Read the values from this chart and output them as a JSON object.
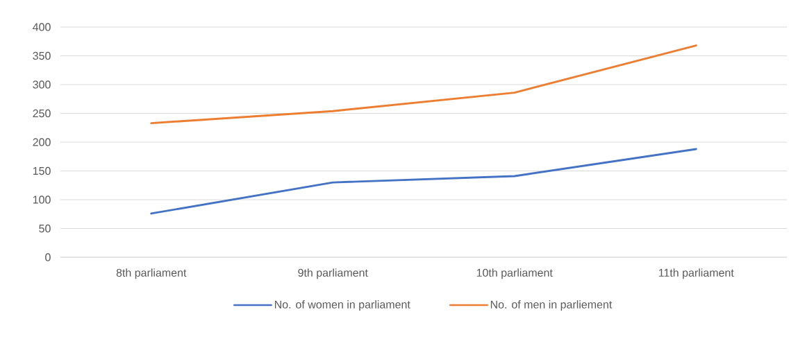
{
  "chart_data": {
    "type": "line",
    "categories": [
      "8th parliament",
      "9th parliament",
      "10th parliament",
      "11th parliament"
    ],
    "series": [
      {
        "name": "No. of women in parliament",
        "color": "#4472c4",
        "values": [
          76,
          130,
          141,
          188
        ]
      },
      {
        "name": "No. of men in parliement",
        "color": "#ed7d31",
        "values": [
          233,
          254,
          286,
          368
        ]
      }
    ],
    "ylim": [
      0,
      400
    ],
    "yticks": [
      0,
      50,
      100,
      150,
      200,
      250,
      300,
      350,
      400
    ],
    "grid": "y",
    "legend": "bottom",
    "marker": "none",
    "line_style": "solid"
  }
}
